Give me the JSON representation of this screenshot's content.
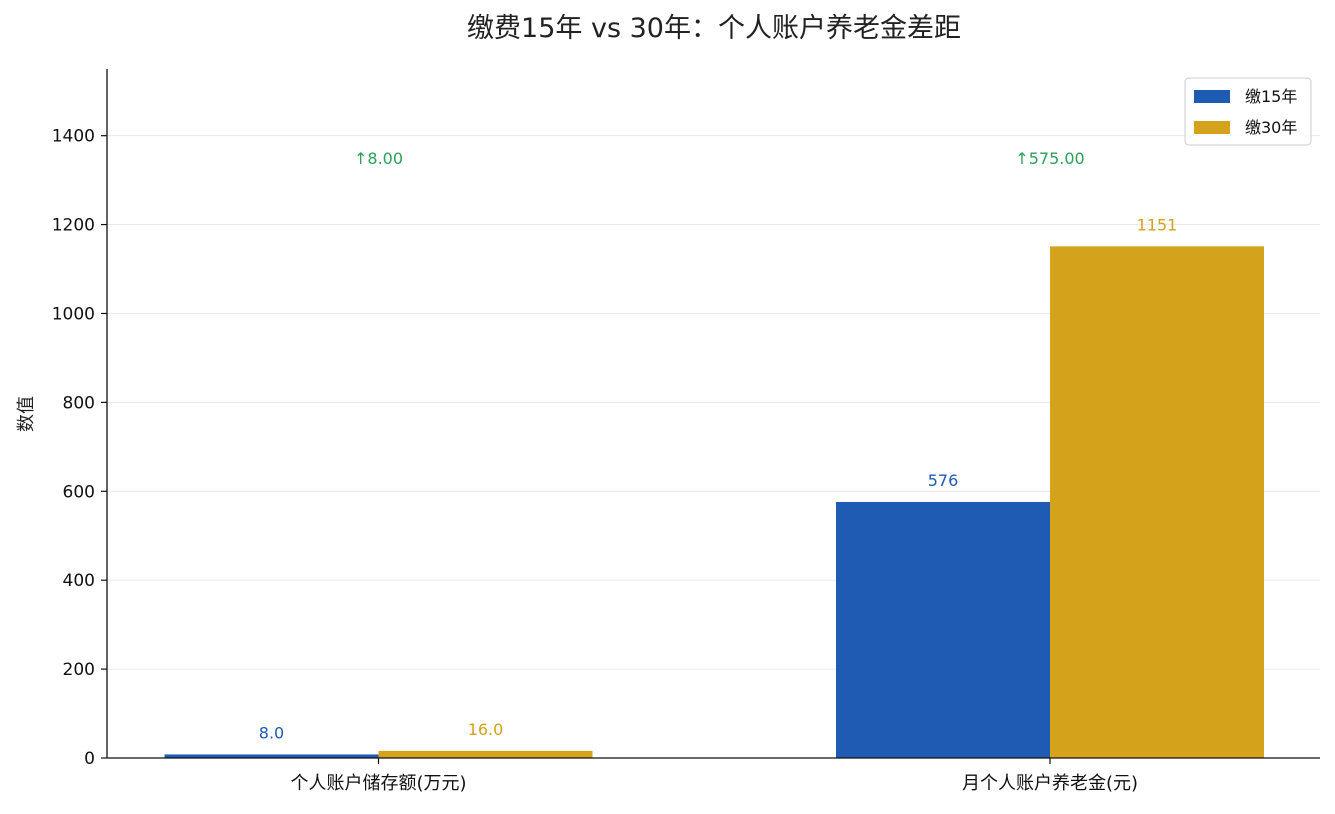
{
  "chart_data": {
    "type": "bar",
    "title": "缴费15年 vs 30年：个人账户养老金差距",
    "xlabel": "",
    "ylabel": "数值",
    "categories": [
      "个人账户储存额(万元)",
      "月个人账户养老金(元)"
    ],
    "series": [
      {
        "name": "缴15年",
        "color": "#1f5bb2",
        "values": [
          8.0,
          576
        ],
        "labels": [
          "8.0",
          "576"
        ]
      },
      {
        "name": "缴30年",
        "color": "#d4a21b",
        "values": [
          16.0,
          1151
        ],
        "labels": [
          "16.0",
          "1151"
        ]
      }
    ],
    "annotations": [
      {
        "category": "个人账户储存额(万元)",
        "text": "↑8.00",
        "y": 1350
      },
      {
        "category": "月个人账户养老金(元)",
        "text": "↑575.00",
        "y": 1350
      }
    ],
    "annotation_color": "#2ca05a",
    "ylim": [
      0,
      1550
    ],
    "yticks": [
      0,
      200,
      400,
      600,
      800,
      1000,
      1200,
      1400
    ],
    "grid": true,
    "legend_position": "top-right"
  }
}
